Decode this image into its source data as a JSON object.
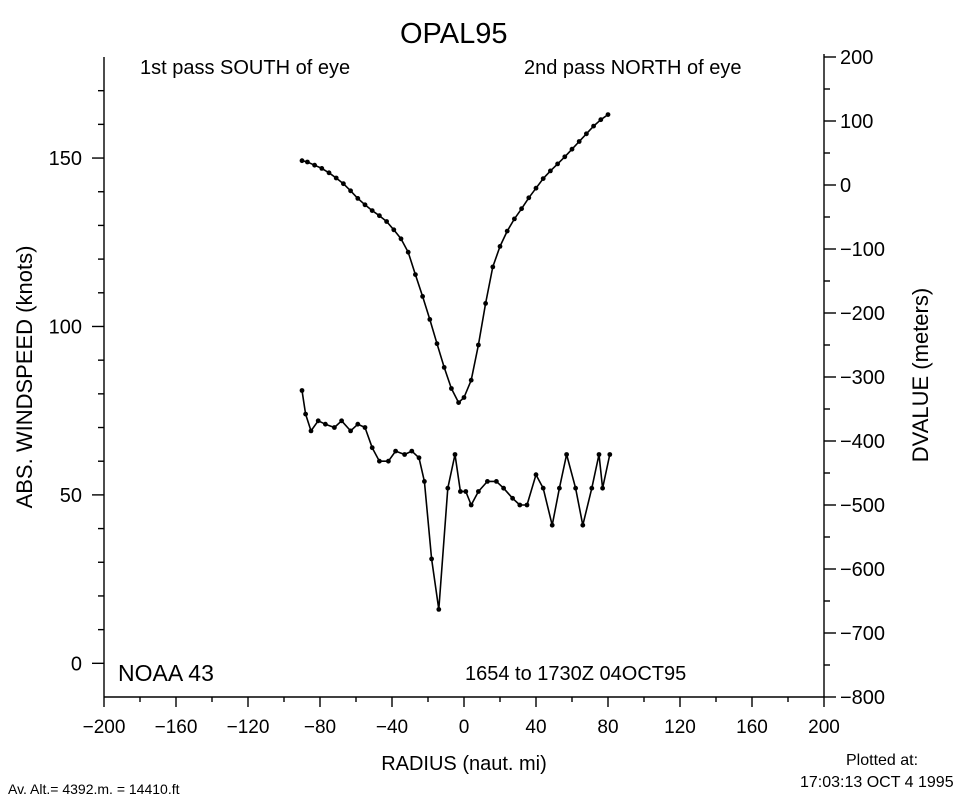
{
  "title": "OPAL95",
  "notes": {
    "first_pass": "1st pass SOUTH of eye",
    "second_pass": "2nd pass NORTH of eye",
    "aircraft": "NOAA 43",
    "time_range": "1654 to 1730Z 04OCT95",
    "avg_altitude": "Av. Alt.= 4392.m. = 14410.ft",
    "plotted_label": "Plotted at:",
    "plotted_time": "17:03:13 OCT  4 1995"
  },
  "colors": {
    "line": "#000000",
    "background": "#ffffff"
  },
  "chart_data": {
    "type": "line",
    "title": "OPAL95",
    "xlabel": "RADIUS (naut. mi)",
    "ylabel": "ABS. WINDSPEED (knots)",
    "y2label": "DVALUE (meters)",
    "xlim": [
      -200,
      200
    ],
    "ylim": [
      -10,
      180
    ],
    "y2lim": [
      -800,
      200
    ],
    "xticks": [
      -200,
      -160,
      -120,
      -80,
      -40,
      0,
      40,
      80,
      120,
      160,
      200
    ],
    "yticks": [
      0,
      50,
      100,
      150
    ],
    "y2ticks": [
      -800,
      -700,
      -600,
      -500,
      -400,
      -300,
      -200,
      -100,
      0,
      100,
      200
    ],
    "grid": false,
    "series": [
      {
        "axis": "left",
        "x": [
          -90,
          -88,
          -85,
          -81,
          -77,
          -72,
          -68,
          -63,
          -59,
          -55,
          -51,
          -47,
          -42,
          -38,
          -33,
          -29,
          -25,
          -22,
          -18,
          -14,
          -9,
          -5,
          -2,
          1,
          4,
          8,
          13,
          18,
          22,
          27,
          31,
          35,
          40,
          44,
          49,
          53,
          57,
          62,
          66,
          71,
          75,
          77,
          81
        ],
        "y": [
          81,
          74,
          69,
          72,
          71,
          70,
          72,
          69,
          71,
          70,
          64,
          60,
          60,
          63,
          62,
          63,
          61,
          54,
          31,
          16,
          52,
          62,
          51,
          51,
          47,
          51,
          54,
          54,
          52,
          49,
          47,
          47,
          56,
          52,
          41,
          52,
          62,
          52,
          41,
          52,
          62,
          52,
          62
        ]
      },
      {
        "axis": "right",
        "x": [
          -90,
          -87,
          -83,
          -79,
          -75,
          -71,
          -67,
          -63,
          -59,
          -55,
          -51,
          -47,
          -43,
          -39,
          -35,
          -31,
          -27,
          -23,
          -19,
          -15,
          -11,
          -7,
          -3,
          0,
          4,
          8,
          12,
          16,
          20,
          24,
          28,
          32,
          36,
          40,
          44,
          48,
          52,
          56,
          60,
          64,
          68,
          72,
          76,
          80
        ],
        "y": [
          38,
          36,
          31,
          26,
          19,
          11,
          2,
          -9,
          -21,
          -31,
          -40,
          -48,
          -57,
          -70,
          -84,
          -105,
          -140,
          -174,
          -210,
          -248,
          -285,
          -318,
          -340,
          -332,
          -305,
          -250,
          -185,
          -128,
          -96,
          -72,
          -53,
          -37,
          -20,
          -5,
          10,
          22,
          33,
          44,
          56,
          68,
          80,
          92,
          102,
          110
        ]
      }
    ]
  }
}
